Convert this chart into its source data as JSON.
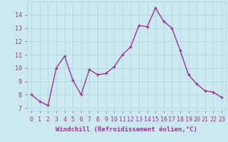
{
  "x": [
    0,
    1,
    2,
    3,
    4,
    5,
    6,
    7,
    8,
    9,
    10,
    11,
    12,
    13,
    14,
    15,
    16,
    17,
    18,
    19,
    20,
    21,
    22,
    23
  ],
  "y": [
    8.0,
    7.5,
    7.2,
    10.0,
    10.9,
    9.1,
    8.0,
    9.9,
    9.5,
    9.6,
    10.1,
    11.0,
    11.6,
    13.2,
    13.1,
    14.5,
    13.5,
    13.0,
    11.3,
    9.5,
    8.8,
    8.3,
    8.2,
    7.8
  ],
  "line_color": "#993399",
  "marker": "+",
  "marker_size": 3.5,
  "linewidth": 1.0,
  "xlabel": "Windchill (Refroidissement éolien,°C)",
  "xlabel_fontsize": 6.5,
  "ylabel_ticks": [
    7,
    8,
    9,
    10,
    11,
    12,
    13,
    14
  ],
  "xtick_labels": [
    "0",
    "1",
    "2",
    "3",
    "4",
    "5",
    "6",
    "7",
    "8",
    "9",
    "10",
    "11",
    "12",
    "13",
    "14",
    "15",
    "16",
    "17",
    "18",
    "19",
    "20",
    "21",
    "22",
    "23"
  ],
  "ylim": [
    6.8,
    15.0
  ],
  "xlim": [
    -0.5,
    23.5
  ],
  "bg_color": "#cce9f0",
  "grid_color": "#b0d8e4",
  "tick_color": "#993399",
  "tick_fontsize": 6.0
}
